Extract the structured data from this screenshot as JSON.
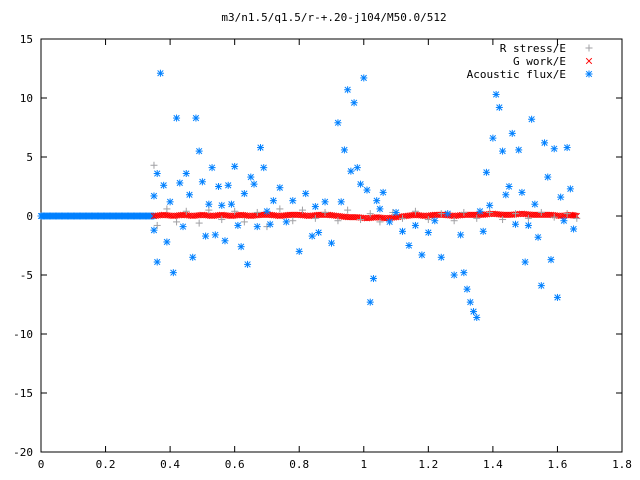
{
  "chart_data": {
    "type": "scatter",
    "title": "m3/n1.5/q1.5/r-+.20-j104/M50.0/512",
    "xlabel": "",
    "ylabel": "",
    "xlim": [
      0,
      1.8
    ],
    "ylim": [
      -20,
      15
    ],
    "x_ticks": [
      0,
      0.2,
      0.4,
      0.6,
      0.8,
      1,
      1.2,
      1.4,
      1.6,
      1.8
    ],
    "x_tick_labels": [
      "0",
      "0.2",
      "0.4",
      "0.6",
      "0.8",
      "1",
      "1.2",
      "1.4",
      "1.6",
      "1.8"
    ],
    "y_ticks": [
      -20,
      -15,
      -10,
      -5,
      0,
      5,
      10,
      15
    ],
    "y_tick_labels": [
      "-20",
      "-15",
      "-10",
      "-5",
      "0",
      "5",
      "10",
      "15"
    ],
    "grid": false,
    "legend_position": "top-right",
    "series": [
      {
        "name": "R stress/E",
        "color": "#a0a0a4",
        "marker": "plus",
        "x": [
          0.35,
          0.36,
          0.39,
          0.42,
          0.45,
          0.49,
          0.52,
          0.56,
          0.6,
          0.63,
          0.67,
          0.7,
          0.74,
          0.78,
          0.81,
          0.85,
          0.88,
          0.92,
          0.95,
          0.99,
          1.02,
          1.05,
          1.09,
          1.12,
          1.16,
          1.2,
          1.24,
          1.28,
          1.31,
          1.35,
          1.39,
          1.43,
          1.47,
          1.51,
          1.55,
          1.59,
          1.63,
          1.66
        ],
        "y": [
          4.3,
          -0.8,
          0.6,
          -0.5,
          0.4,
          -0.6,
          0.5,
          -0.3,
          0.4,
          -0.5,
          0.3,
          -0.9,
          0.6,
          -0.4,
          0.5,
          -0.2,
          0.3,
          -0.4,
          0.5,
          -0.3,
          0.2,
          -0.5,
          0.3,
          -0.2,
          0.4,
          -0.3,
          0.2,
          -0.4,
          0.3,
          -0.2,
          0.3,
          -0.3,
          0.2,
          -0.2,
          0.3,
          -0.1,
          0.2,
          -0.2
        ]
      },
      {
        "name": "G work/E",
        "color": "#ff0000",
        "marker": "cross",
        "x": [
          0.35,
          0.38,
          0.41,
          0.44,
          0.47,
          0.5,
          0.53,
          0.56,
          0.59,
          0.62,
          0.65,
          0.68,
          0.71,
          0.74,
          0.77,
          0.8,
          0.83,
          0.86,
          0.89,
          0.92,
          0.95,
          0.98,
          1.01,
          1.04,
          1.07,
          1.1,
          1.13,
          1.16,
          1.19,
          1.22,
          1.25,
          1.28,
          1.31,
          1.34,
          1.37,
          1.4,
          1.43,
          1.46,
          1.49,
          1.52,
          1.55,
          1.58,
          1.61,
          1.64,
          1.66
        ],
        "y": [
          0.0,
          0.1,
          0.0,
          0.1,
          0.0,
          0.1,
          0.0,
          0.1,
          0.0,
          0.1,
          0.0,
          0.1,
          0.1,
          0.0,
          0.1,
          0.1,
          0.0,
          0.1,
          0.1,
          0.0,
          -0.1,
          -0.1,
          -0.2,
          -0.1,
          -0.2,
          -0.1,
          0.0,
          0.1,
          0.0,
          0.1,
          0.1,
          0.0,
          0.1,
          0.1,
          0.1,
          0.2,
          0.1,
          0.1,
          0.2,
          0.1,
          0.1,
          0.1,
          0.0,
          0.1,
          0.0
        ]
      },
      {
        "name": "Acoustic flux/E",
        "color": "#0080ff",
        "marker": "star",
        "x": [
          0.35,
          0.35,
          0.36,
          0.36,
          0.37,
          0.38,
          0.39,
          0.4,
          0.41,
          0.42,
          0.43,
          0.44,
          0.45,
          0.46,
          0.47,
          0.48,
          0.49,
          0.5,
          0.51,
          0.52,
          0.53,
          0.54,
          0.55,
          0.56,
          0.57,
          0.58,
          0.59,
          0.6,
          0.61,
          0.62,
          0.63,
          0.64,
          0.65,
          0.66,
          0.67,
          0.68,
          0.69,
          0.7,
          0.71,
          0.72,
          0.74,
          0.76,
          0.78,
          0.8,
          0.82,
          0.84,
          0.85,
          0.86,
          0.88,
          0.9,
          0.92,
          0.93,
          0.94,
          0.95,
          0.96,
          0.97,
          0.98,
          0.99,
          1.0,
          1.01,
          1.02,
          1.03,
          1.04,
          1.05,
          1.06,
          1.08,
          1.1,
          1.12,
          1.14,
          1.16,
          1.18,
          1.2,
          1.22,
          1.24,
          1.26,
          1.28,
          1.3,
          1.31,
          1.32,
          1.33,
          1.34,
          1.35,
          1.36,
          1.37,
          1.38,
          1.39,
          1.4,
          1.41,
          1.42,
          1.43,
          1.44,
          1.45,
          1.46,
          1.47,
          1.48,
          1.49,
          1.5,
          1.51,
          1.52,
          1.53,
          1.54,
          1.55,
          1.56,
          1.57,
          1.58,
          1.59,
          1.6,
          1.61,
          1.62,
          1.63,
          1.64,
          1.65
        ],
        "y": [
          1.7,
          -1.2,
          3.6,
          -3.9,
          12.1,
          2.6,
          -2.2,
          1.2,
          -4.8,
          8.3,
          2.8,
          -0.9,
          3.6,
          1.8,
          -3.5,
          8.3,
          5.5,
          2.9,
          -1.7,
          1.0,
          4.1,
          -1.6,
          2.5,
          0.9,
          -2.1,
          2.6,
          1.0,
          4.2,
          -0.8,
          -2.6,
          1.9,
          -4.1,
          3.3,
          2.7,
          -0.9,
          5.8,
          4.1,
          0.4,
          -0.7,
          1.3,
          2.4,
          -0.5,
          1.3,
          -3.0,
          1.9,
          -1.7,
          0.8,
          -1.4,
          1.2,
          -2.3,
          7.9,
          1.2,
          5.6,
          10.7,
          3.8,
          9.6,
          4.1,
          2.7,
          11.7,
          2.2,
          -7.3,
          -5.3,
          1.3,
          0.6,
          2.0,
          -0.5,
          0.3,
          -1.3,
          -2.5,
          -0.8,
          -3.3,
          -1.4,
          -0.4,
          -3.5,
          0.2,
          -5.0,
          -1.6,
          -4.8,
          -6.2,
          -7.3,
          -8.1,
          -8.6,
          0.4,
          -1.3,
          3.7,
          0.9,
          6.6,
          10.3,
          9.2,
          5.5,
          1.8,
          2.5,
          7.0,
          -0.7,
          5.6,
          2.0,
          -3.9,
          -0.8,
          8.2,
          1.0,
          -1.8,
          -5.9,
          6.2,
          3.3,
          -3.7,
          5.7,
          -6.9,
          1.6,
          -0.4,
          5.8,
          2.3,
          -1.1
        ]
      }
    ],
    "dense_line": {
      "series": "Acoustic flux/E",
      "x_start": 0,
      "x_end": 0.35,
      "y": 0
    }
  }
}
